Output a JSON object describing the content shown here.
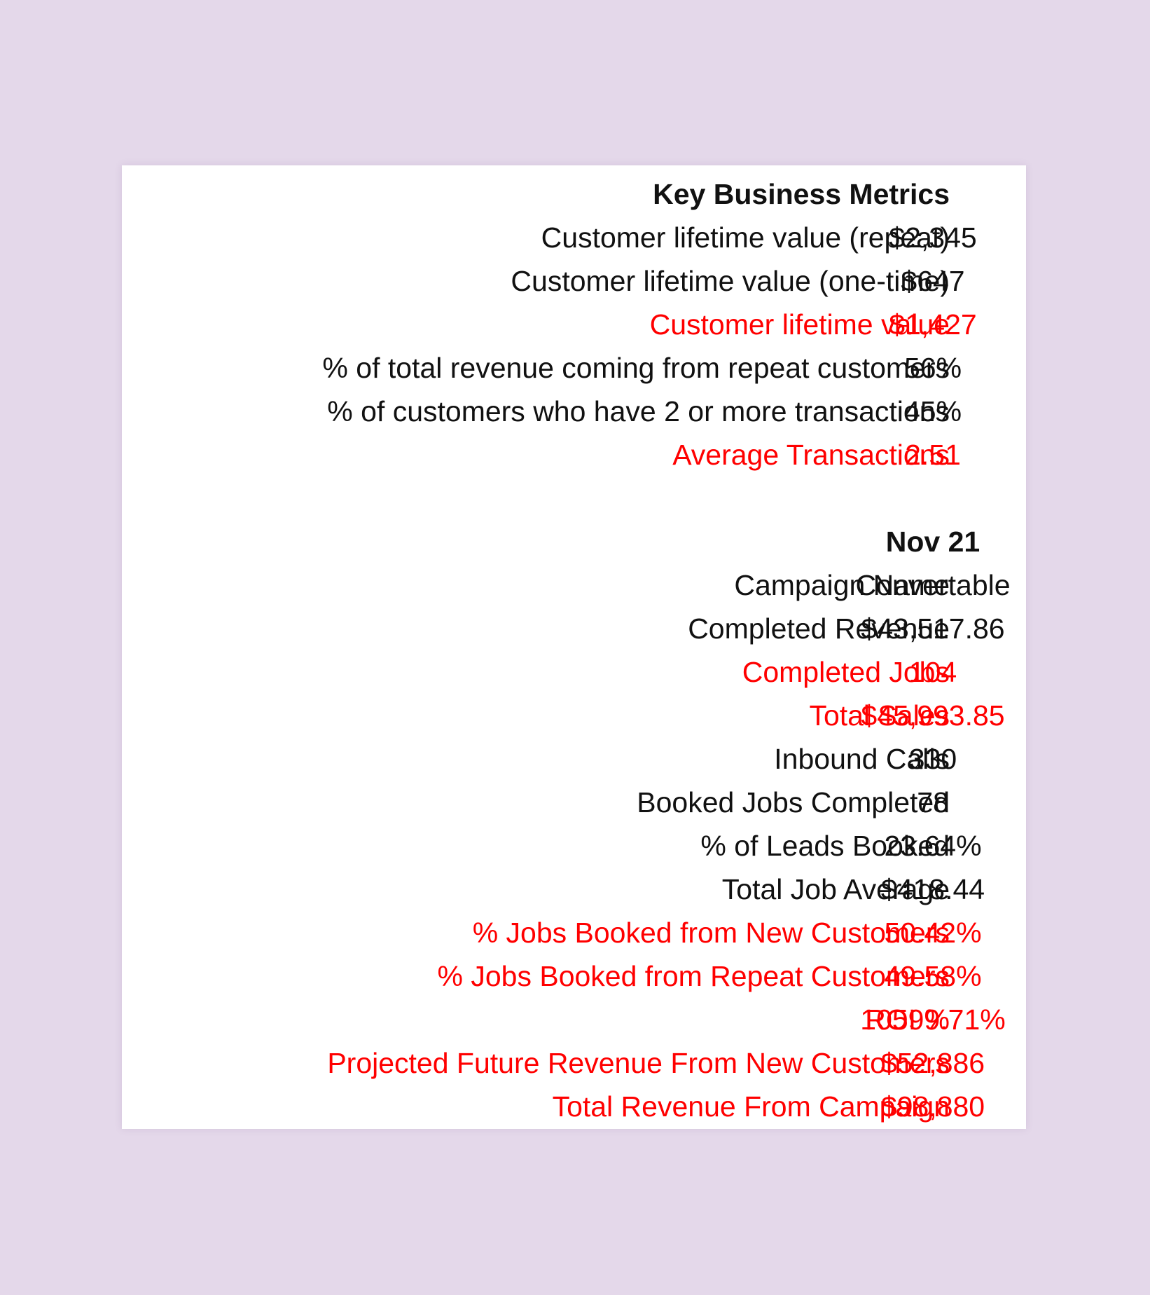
{
  "metrics": {
    "title": "Key Business Metrics",
    "rows": [
      {
        "label": "Customer lifetime value (repeat)",
        "value": "$2,345"
      },
      {
        "label": "Customer lifetime value (one-time)",
        "value": "$647"
      },
      {
        "label": "Customer lifetime value",
        "value": "$1,427"
      },
      {
        "label": "% of total revenue coming from repeat customers",
        "value": "56%"
      },
      {
        "label": "% of customers who have 2 or more transactions",
        "value": "45%"
      },
      {
        "label": "Average Transactions",
        "value": "2.51"
      }
    ]
  },
  "campaign": {
    "period": "Nov 21",
    "rows": [
      {
        "label": "Campaign Name",
        "value": "Convertable"
      },
      {
        "label": "Completed Revenue",
        "value": "$43,517.86"
      },
      {
        "label": "Completed Jobs",
        "value": "104"
      },
      {
        "label": "Total Sales",
        "value": "$45,993.85"
      },
      {
        "label": "Inbound Calls",
        "value": "330"
      },
      {
        "label": "Booked Jobs Completed",
        "value": "78"
      },
      {
        "label": "% of Leads Booked",
        "value": "23.64%"
      },
      {
        "label": "Total Job Average",
        "value": "$418.44"
      },
      {
        "label": "% Jobs Booked from New Customers",
        "value": "50.42%"
      },
      {
        "label": "% Jobs Booked from Repeat Customers",
        "value": "49.58%"
      },
      {
        "label": "ROI %",
        "value": "10599.71%"
      },
      {
        "label": "Projected Future Revenue From New Customers",
        "value": "$52,886"
      },
      {
        "label": "Total Revenue From Campaign",
        "value": "$98,880"
      }
    ]
  },
  "colors": {
    "background": "#e4d8ea",
    "card": "#ffffff",
    "text": "#111111",
    "highlight": "#ff0000"
  }
}
